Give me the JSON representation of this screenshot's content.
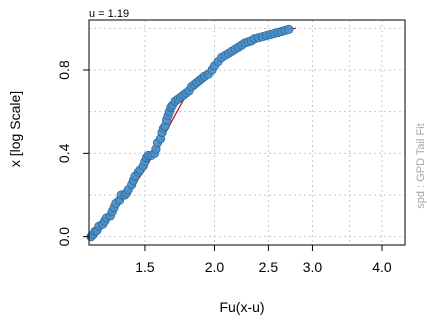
{
  "chart_data": {
    "type": "scatter",
    "title": "u = 1.19",
    "xlabel": "Fu(x-u)",
    "ylabel": "x [log Scale]",
    "side_note": "spd : GPD Tail Fit",
    "x_scale": "log",
    "xlim": [
      1.19,
      4.4
    ],
    "ylim": [
      -0.04,
      1.04
    ],
    "x_ticks": [
      1.5,
      2.0,
      2.5,
      3.0,
      4.0
    ],
    "x_tick_labels": [
      "1.5",
      "2.0",
      "2.5",
      "3.0",
      "4.0"
    ],
    "x_grid": [
      1.5,
      2.0,
      2.5,
      3.0,
      3.5,
      4.0
    ],
    "y_ticks": [
      0.0,
      0.4,
      0.8
    ],
    "y_tick_labels": [
      "0.0",
      "0.4",
      "0.8"
    ],
    "y_grid": [
      0.0,
      0.2,
      0.4,
      0.6,
      0.8,
      1.0
    ],
    "grid": true,
    "legend": "none",
    "colors": {
      "points": "#4a8fc6",
      "point_edge": "#2b6aa0",
      "fit_line": "#b81c1c",
      "grid": "#c9c9c9",
      "side_note": "#a6a6a6"
    },
    "fit_curve": {
      "x": [
        1.2,
        1.25,
        1.3,
        1.35,
        1.4,
        1.45,
        1.5,
        1.55,
        1.6,
        1.65,
        1.7,
        1.75,
        1.8,
        1.9,
        2.0,
        2.1,
        2.2,
        2.3,
        2.4,
        2.5,
        2.6,
        2.7,
        2.8
      ],
      "y": [
        0.0,
        0.055,
        0.105,
        0.158,
        0.21,
        0.265,
        0.325,
        0.39,
        0.455,
        0.52,
        0.585,
        0.645,
        0.7,
        0.77,
        0.83,
        0.873,
        0.908,
        0.936,
        0.958,
        0.975,
        0.987,
        0.995,
        1.0
      ]
    },
    "points": {
      "x": [
        1.2,
        1.21,
        1.22,
        1.23,
        1.24,
        1.26,
        1.27,
        1.28,
        1.3,
        1.31,
        1.32,
        1.33,
        1.35,
        1.36,
        1.38,
        1.39,
        1.4,
        1.42,
        1.43,
        1.44,
        1.46,
        1.47,
        1.49,
        1.5,
        1.51,
        1.52,
        1.54,
        1.56,
        1.57,
        1.58,
        1.6,
        1.61,
        1.62,
        1.63,
        1.64,
        1.65,
        1.66,
        1.67,
        1.68,
        1.7,
        1.72,
        1.74,
        1.76,
        1.78,
        1.8,
        1.82,
        1.84,
        1.86,
        1.88,
        1.9,
        1.92,
        1.95,
        1.98,
        2.0,
        2.03,
        2.06,
        2.09,
        2.12,
        2.15,
        2.18,
        2.21,
        2.24,
        2.27,
        2.3,
        2.33,
        2.36,
        2.4,
        2.44,
        2.48,
        2.52,
        2.56,
        2.6,
        2.64,
        2.68,
        2.72
      ],
      "y": [
        0.0,
        0.01,
        0.025,
        0.03,
        0.05,
        0.06,
        0.075,
        0.09,
        0.1,
        0.12,
        0.14,
        0.16,
        0.175,
        0.2,
        0.2,
        0.21,
        0.225,
        0.25,
        0.27,
        0.29,
        0.31,
        0.32,
        0.34,
        0.36,
        0.38,
        0.39,
        0.39,
        0.4,
        0.42,
        0.45,
        0.47,
        0.5,
        0.52,
        0.53,
        0.56,
        0.58,
        0.6,
        0.62,
        0.63,
        0.65,
        0.66,
        0.67,
        0.68,
        0.69,
        0.7,
        0.72,
        0.73,
        0.74,
        0.75,
        0.76,
        0.77,
        0.78,
        0.8,
        0.82,
        0.84,
        0.86,
        0.87,
        0.88,
        0.89,
        0.9,
        0.91,
        0.92,
        0.93,
        0.935,
        0.94,
        0.95,
        0.955,
        0.96,
        0.965,
        0.97,
        0.975,
        0.98,
        0.985,
        0.99,
        0.995
      ]
    }
  }
}
